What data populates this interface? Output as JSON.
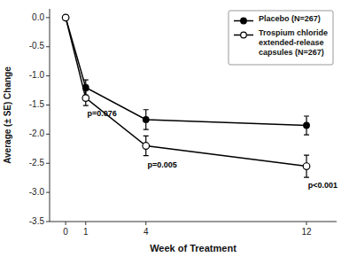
{
  "chart_data": {
    "type": "line",
    "xlabel": "Week of Treatment",
    "ylabel": "Average (± SE) Change",
    "x": [
      0,
      1,
      4,
      12
    ],
    "series": [
      {
        "name": "Placebo (N=267)",
        "color": "black",
        "marker": "filled-circle",
        "line_style": "solid",
        "values": [
          0.0,
          -1.2,
          -1.75,
          -1.85
        ],
        "errors": [
          0.0,
          0.13,
          0.17,
          0.16
        ]
      },
      {
        "name": "Trospium chloride\nextended-release\ncapsules (N=267)",
        "color": "black",
        "marker": "open-circle",
        "line_style": "solid",
        "values": [
          0.0,
          -1.38,
          -2.2,
          -2.55
        ],
        "errors": [
          0.0,
          0.13,
          0.17,
          0.19
        ]
      }
    ],
    "xlim": [
      -0.8,
      13.5
    ],
    "ylim": [
      -3.5,
      0.15
    ],
    "xticks": [
      0,
      1,
      4,
      12
    ],
    "yticks": [
      {
        "value": 0.0,
        "label": "0.0"
      },
      -0.5,
      {
        "value": -1.0,
        "label": "-1.0"
      },
      -1.5,
      {
        "value": -2.0,
        "label": "-2.0"
      },
      -2.5,
      {
        "value": -3.0,
        "label": "-3.0"
      },
      -3.5
    ],
    "annotations": [
      {
        "x": 1.08,
        "y": -1.6,
        "text": "p=0.076"
      },
      {
        "x": 4.08,
        "y": -2.48,
        "text": "p=0.005"
      },
      {
        "x": 12.08,
        "y": -2.83,
        "text": "p<0.001"
      }
    ],
    "legend": "upper right",
    "grid": false
  }
}
